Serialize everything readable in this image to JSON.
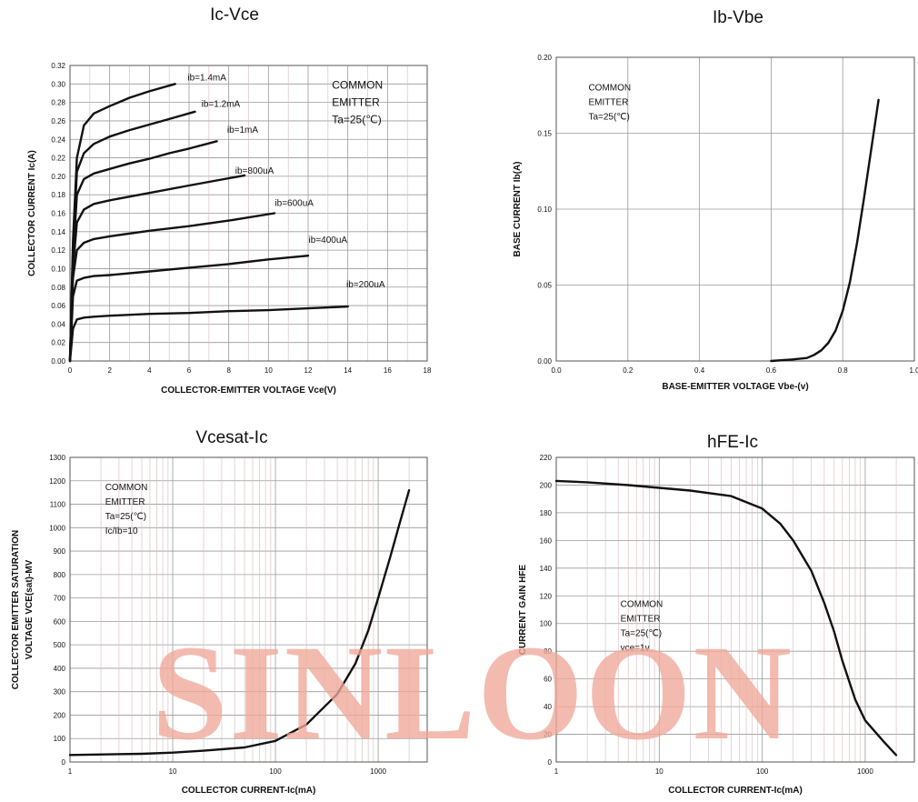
{
  "watermark": "SINLOON",
  "colors": {
    "curve": "#111111",
    "grid": "#9a9a9a",
    "watermark": "#f0a898"
  },
  "chart_data": [
    {
      "id": "ic-vce",
      "type": "line",
      "title": "Ic-Vce",
      "xlabel": "COLLECTOR-EMITTER VOLTAGE Vce(V)",
      "ylabel": "COLLECTOR CURRENT Ic(A)",
      "xscale": "linear",
      "xlim": [
        0,
        18
      ],
      "ylim": [
        0,
        0.32
      ],
      "xticks": [
        0,
        2,
        4,
        6,
        8,
        10,
        12,
        14,
        16,
        18
      ],
      "xtick_labels": [
        "0",
        "2",
        "4",
        "6",
        "8",
        "10",
        "12",
        "14",
        "16",
        "18"
      ],
      "yticks": [
        0.0,
        0.02,
        0.04,
        0.06,
        0.08,
        0.1,
        0.12,
        0.14,
        0.16,
        0.18,
        0.2,
        0.22,
        0.24,
        0.26,
        0.28,
        0.3,
        0.32
      ],
      "ytick_labels": [
        "0.00",
        "0.02",
        "0.04",
        "0.06",
        "0.08",
        "0.10",
        "0.12",
        "0.14",
        "0.16",
        "0.18",
        "0.20",
        "0.22",
        "0.24",
        "0.26",
        "0.28",
        "0.30",
        "0.32"
      ],
      "grid": true,
      "annotation": [
        "COMMON",
        "EMITTER",
        "Ta=25(℃)"
      ],
      "annotation_pos": [
        13.2,
        0.295
      ],
      "series": [
        {
          "label": "ib=1.4mA",
          "label_pos": [
            6.9,
            0.304
          ],
          "x": [
            0,
            0.15,
            0.35,
            0.7,
            1.2,
            2,
            3,
            4,
            5.3
          ],
          "y": [
            0,
            0.13,
            0.22,
            0.255,
            0.268,
            0.276,
            0.285,
            0.292,
            0.3
          ]
        },
        {
          "label": "ib=1.2mA",
          "label_pos": [
            7.6,
            0.275
          ],
          "x": [
            0,
            0.15,
            0.35,
            0.7,
            1.2,
            2,
            3,
            4,
            5,
            6.3
          ],
          "y": [
            0,
            0.12,
            0.205,
            0.225,
            0.235,
            0.243,
            0.25,
            0.256,
            0.262,
            0.27
          ]
        },
        {
          "label": "ib=1mA",
          "label_pos": [
            8.7,
            0.247
          ],
          "x": [
            0,
            0.15,
            0.35,
            0.7,
            1.2,
            2,
            3,
            4,
            5,
            6,
            7.4
          ],
          "y": [
            0,
            0.11,
            0.18,
            0.197,
            0.203,
            0.208,
            0.214,
            0.219,
            0.225,
            0.23,
            0.238
          ]
        },
        {
          "label": "ib=800uA",
          "label_pos": [
            9.3,
            0.203
          ],
          "x": [
            0,
            0.15,
            0.35,
            0.7,
            1.2,
            2,
            4,
            6,
            8.8
          ],
          "y": [
            0,
            0.1,
            0.15,
            0.164,
            0.17,
            0.174,
            0.182,
            0.19,
            0.201
          ]
        },
        {
          "label": "ib=600uA",
          "label_pos": [
            11.3,
            0.168
          ],
          "x": [
            0,
            0.15,
            0.35,
            0.7,
            1.2,
            2,
            4,
            6,
            8,
            10.3
          ],
          "y": [
            0,
            0.09,
            0.12,
            0.128,
            0.132,
            0.135,
            0.141,
            0.146,
            0.152,
            0.16
          ]
        },
        {
          "label": "ib=400uA",
          "label_pos": [
            13.0,
            0.128
          ],
          "x": [
            0,
            0.15,
            0.35,
            0.7,
            1.2,
            2,
            4,
            6,
            8,
            10,
            12
          ],
          "y": [
            0,
            0.07,
            0.087,
            0.09,
            0.092,
            0.093,
            0.097,
            0.101,
            0.105,
            0.11,
            0.114
          ]
        },
        {
          "label": "ib=200uA",
          "label_pos": [
            14.9,
            0.08
          ],
          "x": [
            0,
            0.15,
            0.35,
            0.7,
            1.2,
            2,
            4,
            6,
            8,
            10,
            12,
            14
          ],
          "y": [
            0,
            0.035,
            0.045,
            0.047,
            0.048,
            0.049,
            0.051,
            0.052,
            0.054,
            0.055,
            0.057,
            0.059
          ]
        }
      ]
    },
    {
      "id": "ib-vbe",
      "type": "line",
      "title": "Ib-Vbe",
      "xlabel": "BASE-EMITTER VOLTAGE Vbe-(v)",
      "ylabel": "BASE CURRENT Ib(A)",
      "xscale": "linear",
      "xlim": [
        0,
        1.0
      ],
      "ylim": [
        0,
        0.2
      ],
      "xticks": [
        0,
        0.2,
        0.4,
        0.6,
        0.8,
        1.0
      ],
      "xtick_labels": [
        "0.0",
        "0.2",
        "0.4",
        "0.6",
        "0.8",
        "1.0"
      ],
      "yticks": [
        0,
        0.05,
        0.1,
        0.15,
        0.2
      ],
      "ytick_labels": [
        "0.00",
        "0.05",
        "0.10",
        "0.15",
        "0.20"
      ],
      "grid": true,
      "annotation": [
        "COMMON",
        "EMITTER",
        "Ta=25(℃)"
      ],
      "annotation_pos": [
        0.09,
        0.178
      ],
      "series": [
        {
          "x": [
            0.6,
            0.66,
            0.7,
            0.72,
            0.74,
            0.76,
            0.78,
            0.8,
            0.82,
            0.84,
            0.86,
            0.88,
            0.9
          ],
          "y": [
            0.0,
            0.001,
            0.002,
            0.004,
            0.007,
            0.012,
            0.02,
            0.033,
            0.052,
            0.078,
            0.108,
            0.14,
            0.172
          ]
        }
      ]
    },
    {
      "id": "vcesat-ic",
      "type": "line",
      "title": "Vcesat-Ic",
      "xlabel": "COLLECTOR CURRENT-Ic(mA)",
      "ylabel": [
        "COLLECTOR EMITTER SATURATION",
        "VOLTAGE VCE(sat)-MV"
      ],
      "xscale": "log",
      "xlim": [
        1,
        3000
      ],
      "ylim": [
        0,
        1300
      ],
      "xticks": [
        1,
        10,
        100,
        1000
      ],
      "xtick_labels": [
        "1",
        "10",
        "100",
        "1000"
      ],
      "yticks": [
        0,
        100,
        200,
        300,
        400,
        500,
        600,
        700,
        800,
        900,
        1000,
        1100,
        1200,
        1300
      ],
      "ytick_labels": [
        "0",
        "100",
        "200",
        "300",
        "400",
        "500",
        "600",
        "700",
        "800",
        "900",
        "1000",
        "1100",
        "1200",
        "1300"
      ],
      "grid": true,
      "annotation": [
        "COMMON",
        "EMITTER",
        "Ta=25(℃)",
        "Ic/Ib=10"
      ],
      "annotation_pos": [
        2.2,
        1160
      ],
      "series": [
        {
          "x": [
            1,
            5,
            10,
            20,
            50,
            100,
            200,
            400,
            600,
            800,
            1000,
            1300,
            1600,
            2000
          ],
          "y": [
            30,
            35,
            40,
            48,
            62,
            90,
            160,
            290,
            420,
            560,
            700,
            870,
            1010,
            1160
          ]
        }
      ]
    },
    {
      "id": "hfe-ic",
      "type": "line",
      "title": "hFE-Ic",
      "xlabel": "COLLECTOR CURRENT-Ic(mA)",
      "ylabel": "CURRENT GAIN HFE",
      "xscale": "log",
      "xlim": [
        1,
        3000
      ],
      "ylim": [
        0,
        220
      ],
      "xticks": [
        1,
        10,
        100,
        1000
      ],
      "xtick_labels": [
        "1",
        "10",
        "100",
        "1000"
      ],
      "yticks": [
        0,
        20,
        40,
        60,
        80,
        100,
        120,
        140,
        160,
        180,
        200,
        220
      ],
      "ytick_labels": [
        "0",
        "20",
        "40",
        "60",
        "80",
        "100",
        "120",
        "140",
        "160",
        "180",
        "200",
        "220"
      ],
      "grid": true,
      "annotation": [
        "COMMON",
        "EMITTER",
        "Ta=25(℃)",
        "vce=1v"
      ],
      "annotation_pos": [
        4.2,
        112
      ],
      "series": [
        {
          "x": [
            1,
            2,
            5,
            10,
            20,
            50,
            100,
            150,
            200,
            300,
            400,
            500,
            600,
            800,
            1000,
            1500,
            2000
          ],
          "y": [
            203,
            202,
            200,
            198,
            196,
            192,
            183,
            172,
            160,
            138,
            115,
            94,
            73,
            45,
            30,
            15,
            5
          ]
        }
      ]
    }
  ]
}
